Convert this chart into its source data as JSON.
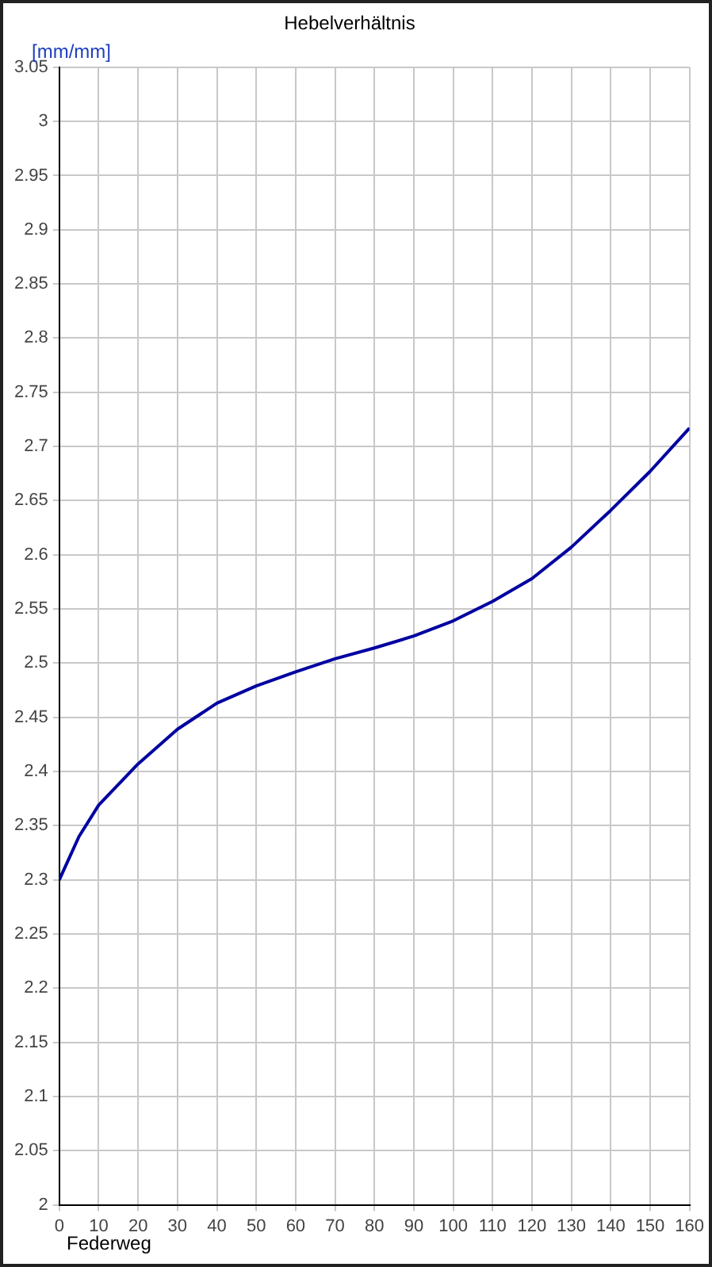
{
  "chart_data": {
    "type": "line",
    "title": "Hebelverhältnis",
    "xlabel": "Federweg",
    "ylabel": "[mm/mm]",
    "x": [
      0,
      5,
      10,
      20,
      30,
      40,
      50,
      60,
      70,
      80,
      90,
      100,
      110,
      120,
      130,
      140,
      150,
      160
    ],
    "series": [
      {
        "color": "#0000a0",
        "values": [
          2.3,
          2.34,
          2.369,
          2.407,
          2.439,
          2.463,
          2.479,
          2.492,
          2.504,
          2.514,
          2.525,
          2.539,
          2.557,
          2.578,
          2.607,
          2.641,
          2.677,
          2.717
        ]
      }
    ],
    "xlim": [
      0,
      160
    ],
    "xticks": [
      0,
      10,
      20,
      30,
      40,
      50,
      60,
      70,
      80,
      90,
      100,
      110,
      120,
      130,
      140,
      150,
      160
    ],
    "ylim": [
      2,
      3.05
    ],
    "yticks": [
      2,
      2.05,
      2.1,
      2.15,
      2.2,
      2.25,
      2.3,
      2.35,
      2.4,
      2.45,
      2.5,
      2.55,
      2.6,
      2.65,
      2.7,
      2.75,
      2.8,
      2.85,
      2.9,
      2.95,
      3,
      3.05
    ],
    "grid": true,
    "legend": false,
    "marker": "none",
    "line_style": "solid"
  }
}
